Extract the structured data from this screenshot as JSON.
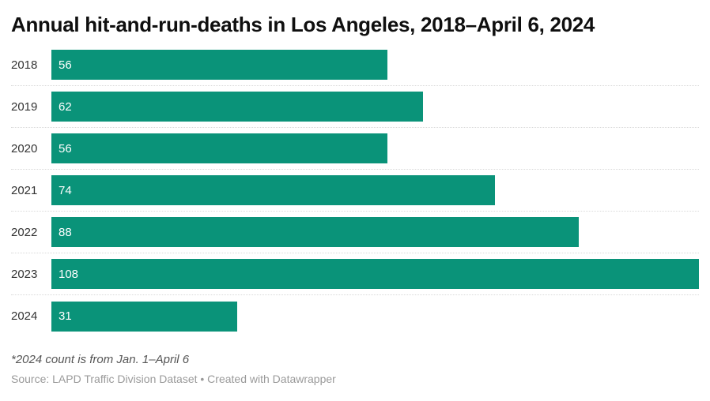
{
  "title": "Annual hit-and-run-deaths in Los Angeles, 2018–April 6, 2024",
  "footnote": "*2024 count is from Jan. 1–April 6",
  "source": "Source: LAPD Traffic Division Dataset • Created with Datawrapper",
  "colors": {
    "background": "#ffffff",
    "bar": "#0a9379",
    "title": "#0f0f0f",
    "year_label": "#333333",
    "value_label": "#ffffff",
    "separator": "#d9d9d9",
    "footnote": "#555555",
    "source": "#9a9a9a"
  },
  "chart_data": {
    "type": "bar",
    "orientation": "horizontal",
    "title": "Annual hit-and-run-deaths in Los Angeles, 2018–April 6, 2024",
    "categories": [
      "2018",
      "2019",
      "2020",
      "2021",
      "2022",
      "2023",
      "2024"
    ],
    "values": [
      56,
      62,
      56,
      74,
      88,
      108,
      31
    ],
    "xlabel": "",
    "ylabel": "",
    "xlim": [
      0,
      108
    ],
    "value_labels": "inside-bar-start",
    "grid": false,
    "legend": false,
    "row_separators": "dotted"
  }
}
